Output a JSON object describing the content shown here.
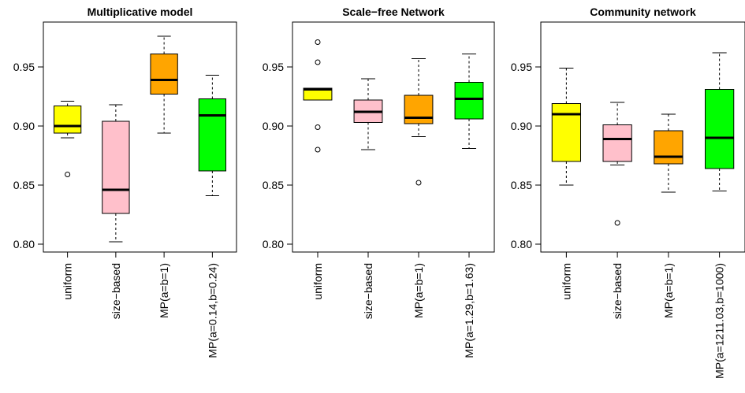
{
  "chart_data": [
    {
      "type": "boxplot",
      "title": "Multiplicative model",
      "ylim": [
        0.79,
        0.985
      ],
      "yticks": [
        "0.80",
        "0.85",
        "0.90",
        "0.95"
      ],
      "categories": [
        "uniform",
        "size−based",
        "MP(a=b=1)",
        "MP(a=0.14,b=0.24)"
      ],
      "colors": [
        "#ffff00",
        "#ffc0cb",
        "#ffa500",
        "#00ff00"
      ],
      "boxes": [
        {
          "whisker_low": 0.89,
          "q1": 0.894,
          "median": 0.9,
          "q3": 0.917,
          "whisker_high": 0.921,
          "outliers": [
            0.859
          ]
        },
        {
          "whisker_low": 0.802,
          "q1": 0.826,
          "median": 0.846,
          "q3": 0.904,
          "whisker_high": 0.918,
          "outliers": []
        },
        {
          "whisker_low": 0.894,
          "q1": 0.927,
          "median": 0.939,
          "q3": 0.961,
          "whisker_high": 0.976,
          "outliers": []
        },
        {
          "whisker_low": 0.841,
          "q1": 0.862,
          "median": 0.909,
          "q3": 0.923,
          "whisker_high": 0.943,
          "outliers": []
        }
      ]
    },
    {
      "type": "boxplot",
      "title": "Scale−free Network",
      "ylim": [
        0.79,
        0.985
      ],
      "yticks": [
        "0.80",
        "0.85",
        "0.90",
        "0.95"
      ],
      "categories": [
        "uniform",
        "size−based",
        "MP(a=b=1)",
        "MP(a=1.29,b=1.63)"
      ],
      "colors": [
        "#ffff00",
        "#ffc0cb",
        "#ffa500",
        "#00ff00"
      ],
      "boxes": [
        {
          "whisker_low": 0.922,
          "q1": 0.922,
          "median": 0.931,
          "q3": 0.932,
          "whisker_high": 0.932,
          "outliers": [
            0.971,
            0.954,
            0.899,
            0.88
          ]
        },
        {
          "whisker_low": 0.88,
          "q1": 0.903,
          "median": 0.912,
          "q3": 0.922,
          "whisker_high": 0.94,
          "outliers": []
        },
        {
          "whisker_low": 0.891,
          "q1": 0.902,
          "median": 0.907,
          "q3": 0.926,
          "whisker_high": 0.957,
          "outliers": [
            0.852
          ]
        },
        {
          "whisker_low": 0.881,
          "q1": 0.906,
          "median": 0.923,
          "q3": 0.937,
          "whisker_high": 0.961,
          "outliers": []
        }
      ]
    },
    {
      "type": "boxplot",
      "title": "Community network",
      "ylim": [
        0.79,
        0.985
      ],
      "yticks": [
        "0.80",
        "0.85",
        "0.90",
        "0.95"
      ],
      "categories": [
        "uniform",
        "size−based",
        "MP(a=b=1)",
        "MP(a=1211.03,b=1000)"
      ],
      "colors": [
        "#ffff00",
        "#ffc0cb",
        "#ffa500",
        "#00ff00"
      ],
      "boxes": [
        {
          "whisker_low": 0.85,
          "q1": 0.87,
          "median": 0.91,
          "q3": 0.919,
          "whisker_high": 0.949,
          "outliers": []
        },
        {
          "whisker_low": 0.867,
          "q1": 0.87,
          "median": 0.889,
          "q3": 0.901,
          "whisker_high": 0.92,
          "outliers": [
            0.818
          ]
        },
        {
          "whisker_low": 0.844,
          "q1": 0.868,
          "median": 0.874,
          "q3": 0.896,
          "whisker_high": 0.91,
          "outliers": []
        },
        {
          "whisker_low": 0.845,
          "q1": 0.864,
          "median": 0.89,
          "q3": 0.931,
          "whisker_high": 0.962,
          "outliers": []
        }
      ]
    }
  ]
}
